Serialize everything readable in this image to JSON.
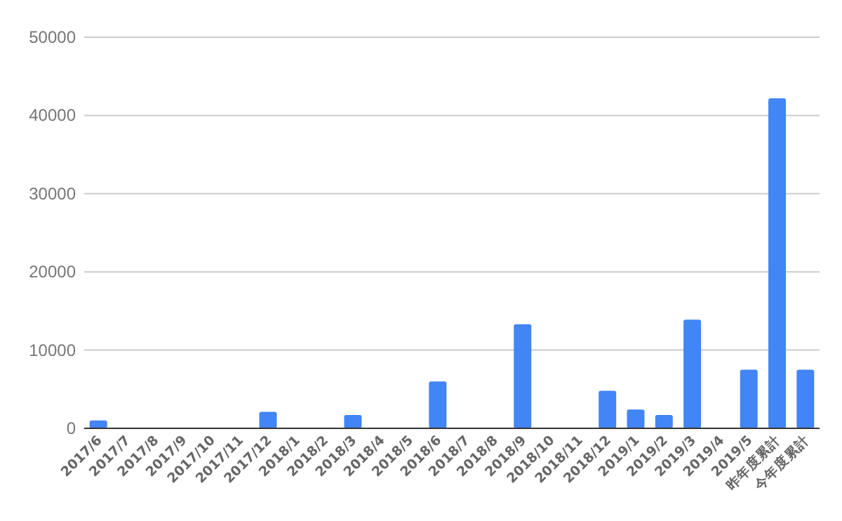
{
  "chart_data": {
    "type": "bar",
    "categories": [
      "2017/6",
      "2017/7",
      "2017/8",
      "2017/9",
      "2017/10",
      "2017/11",
      "2017/12",
      "2018/1",
      "2018/2",
      "2018/3",
      "2018/4",
      "2018/5",
      "2018/6",
      "2018/7",
      "2018/8",
      "2018/9",
      "2018/10",
      "2018/11",
      "2018/12",
      "2019/1",
      "2019/2",
      "2019/3",
      "2019/4",
      "2019/5",
      "昨年度累計",
      "今年度累計"
    ],
    "values": [
      1000,
      0,
      0,
      0,
      0,
      0,
      2100,
      0,
      0,
      1700,
      0,
      0,
      6000,
      0,
      0,
      13300,
      0,
      0,
      4800,
      2400,
      1700,
      13900,
      0,
      7500,
      42200,
      7500
    ],
    "color": "#4285f4",
    "ylim": [
      0,
      50000
    ],
    "yticks": [
      0,
      10000,
      20000,
      30000,
      40000,
      50000
    ],
    "grid": "y"
  }
}
